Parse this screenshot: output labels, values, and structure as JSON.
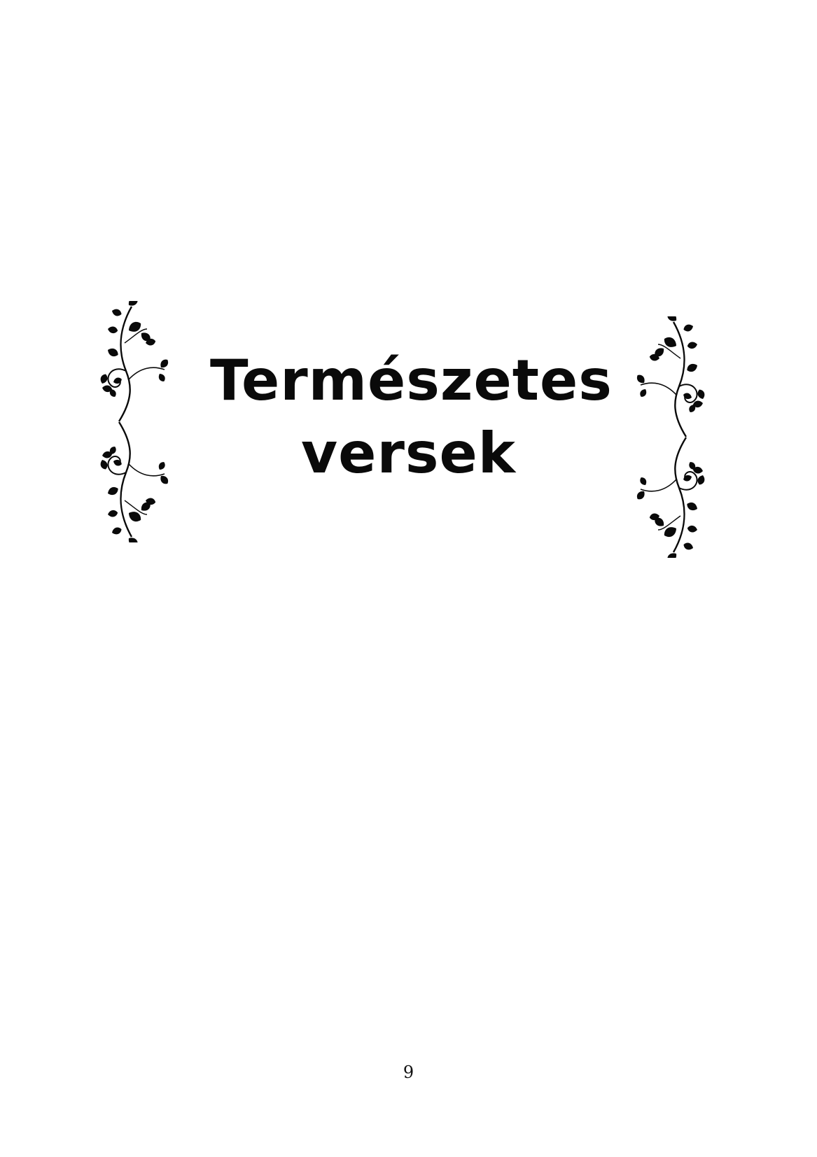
{
  "document": {
    "title_lines": [
      "Természetes",
      "versek"
    ],
    "page_number": "9"
  },
  "ornaments": {
    "left": "vine-ornament-icon",
    "right": "vine-ornament-icon"
  },
  "colors": {
    "ink": "#0a0a0a",
    "background": "#ffffff"
  }
}
